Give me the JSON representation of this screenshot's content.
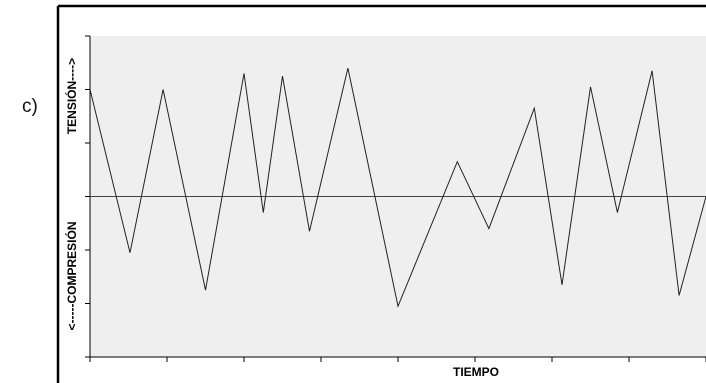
{
  "panel_label": "c)",
  "chart_data": {
    "type": "line",
    "xlabel": "TIEMPO",
    "ylabel_positive": "TENSIÓN---->",
    "ylabel_negative": "<-----COMPRESIÓN",
    "ylim": [
      -3,
      3
    ],
    "xlim": [
      0,
      8
    ],
    "yticks": [
      -3,
      -2,
      -1,
      0,
      1,
      2,
      3
    ],
    "xticks": [
      0,
      1,
      2,
      3,
      4,
      5,
      6,
      7,
      8
    ],
    "grid": false,
    "colors": {
      "plot_background": "#efefef",
      "line": "#222222",
      "zero_line": "#444444",
      "frame": "#000000"
    },
    "series": [
      {
        "x": [
          0.0,
          0.52,
          0.95,
          1.5,
          2.0,
          2.25,
          2.5,
          2.85,
          3.35,
          4.0,
          4.77,
          5.18,
          5.77,
          6.13,
          6.5,
          6.85,
          7.3,
          7.65,
          8.0
        ],
        "y": [
          2.0,
          -1.05,
          2.0,
          -1.75,
          2.3,
          -0.3,
          2.25,
          -0.65,
          2.4,
          -2.05,
          0.65,
          -0.6,
          1.65,
          -1.65,
          2.05,
          -0.3,
          2.35,
          -1.85,
          0.0
        ]
      }
    ]
  }
}
